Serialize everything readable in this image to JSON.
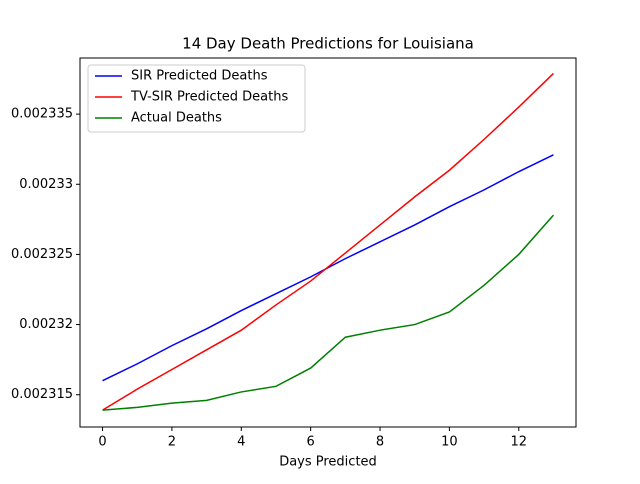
{
  "chart_data": {
    "type": "line",
    "title": "14 Day Death Predictions for Louisiana",
    "xlabel": "Days Predicted",
    "x": [
      0,
      1,
      2,
      3,
      4,
      5,
      6,
      7,
      8,
      9,
      10,
      11,
      12,
      13
    ],
    "series": [
      {
        "name": "SIR Predicted Deaths",
        "color": "#0000ff",
        "values": [
          0.002316,
          0.0023172,
          0.0023185,
          0.0023197,
          0.002321,
          0.0023222,
          0.0023234,
          0.0023247,
          0.0023259,
          0.0023271,
          0.0023284,
          0.0023296,
          0.0023309,
          0.0023321
        ]
      },
      {
        "name": "TV-SIR Predicted Deaths",
        "color": "#ff0000",
        "values": [
          0.0023139,
          0.0023154,
          0.0023168,
          0.0023182,
          0.0023196,
          0.0023214,
          0.0023231,
          0.0023251,
          0.0023271,
          0.0023291,
          0.002331,
          0.0023332,
          0.0023355,
          0.0023379
        ]
      },
      {
        "name": "Actual Deaths",
        "color": "#008000",
        "values": [
          0.0023139,
          0.0023141,
          0.0023144,
          0.0023146,
          0.0023152,
          0.0023156,
          0.0023169,
          0.0023191,
          0.0023196,
          0.00232,
          0.0023209,
          0.0023228,
          0.002325,
          0.0023278
        ]
      }
    ],
    "xlim": [
      -0.65,
      13.65
    ],
    "xticks": [
      0,
      2,
      4,
      6,
      8,
      10,
      12
    ],
    "ylim": [
      0.0023127,
      0.002339
    ],
    "yticks": [
      0.002315,
      0.00232,
      0.002325,
      0.00233,
      0.002335
    ],
    "legend": "upper left"
  }
}
